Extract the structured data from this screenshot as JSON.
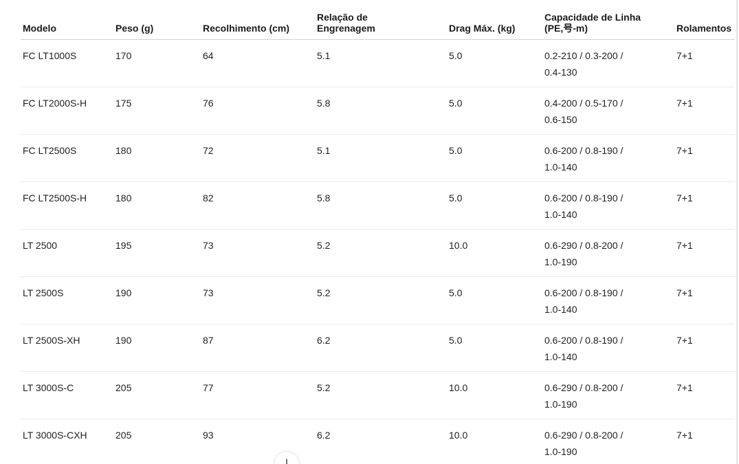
{
  "table": {
    "columns": [
      "Modelo",
      "Peso (g)",
      "Recolhimento (cm)",
      "Relação de\nEngrenagem",
      "Drag Máx. (kg)",
      "Capacidade de Linha\n(PE,号-m)",
      "Rolamentos"
    ],
    "rows": [
      [
        "FC LT1000S",
        "170",
        "64",
        "5.1",
        "5.0",
        "0.2-210 / 0.3-200 /\n0.4-130",
        "7+1"
      ],
      [
        "FC LT2000S-H",
        "175",
        "76",
        "5.8",
        "5.0",
        "0.4-200 / 0.5-170 /\n0.6-150",
        "7+1"
      ],
      [
        "FC LT2500S",
        "180",
        "72",
        "5.1",
        "5.0",
        "0.6-200 / 0.8-190 /\n1.0-140",
        "7+1"
      ],
      [
        "FC LT2500S-H",
        "180",
        "82",
        "5.8",
        "5.0",
        "0.6-200 / 0.8-190 /\n1.0-140",
        "7+1"
      ],
      [
        "LT 2500",
        "195",
        "73",
        "5.2",
        "10.0",
        "0.6-290 / 0.8-200 /\n1.0-190",
        "7+1"
      ],
      [
        "LT 2500S",
        "190",
        "73",
        "5.2",
        "5.0",
        "0.6-200 / 0.8-190 /\n1.0-140",
        "7+1"
      ],
      [
        "LT 2500S-XH",
        "190",
        "87",
        "6.2",
        "5.0",
        "0.6-200 / 0.8-190 /\n1.0-140",
        "7+1"
      ],
      [
        "LT 3000S-C",
        "205",
        "77",
        "5.2",
        "10.0",
        "0.6-290 / 0.8-200 /\n1.0-190",
        "7+1"
      ],
      [
        "LT 3000S-CXH",
        "205",
        "93",
        "6.2",
        "10.0",
        "0.6-290 / 0.8-200 /\n1.0-190",
        "7+1"
      ]
    ]
  },
  "scroll_button": {
    "icon_glyph": "↓",
    "icon_name": "arrow-down"
  },
  "colors": {
    "background": "#ffffff",
    "text": "#1a1a1a",
    "header_divider": "#d2d2d2",
    "row_divider": "#ebebeb",
    "right_border": "#e3e3e3",
    "button_border": "#e2e2e2"
  }
}
